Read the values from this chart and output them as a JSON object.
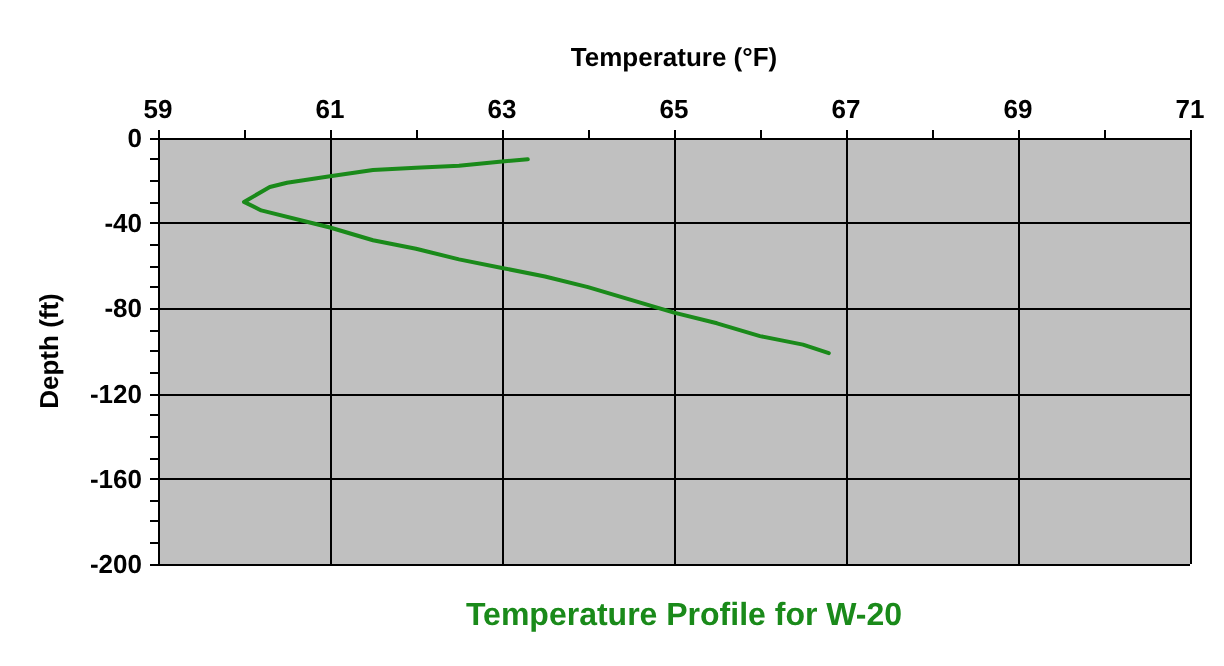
{
  "chart_data": {
    "type": "line",
    "title": "Temperature Profile for W-20",
    "xlabel": "Temperature (°F)",
    "ylabel": "Depth (ft)",
    "xlim": [
      59,
      71
    ],
    "ylim": [
      -200,
      0
    ],
    "xticks": [
      59,
      {
        "value": 60,
        "label": null
      },
      61,
      {
        "value": 62,
        "label": null
      },
      63,
      {
        "value": 64,
        "label": null
      },
      65,
      {
        "value": 66,
        "label": null
      },
      67,
      {
        "value": 68,
        "label": null
      },
      69,
      {
        "value": 70,
        "label": null
      },
      71
    ],
    "yticks": [
      -200,
      {
        "value": -190,
        "label": null
      },
      {
        "value": -180,
        "label": null
      },
      {
        "value": -170,
        "label": null
      },
      -160,
      {
        "value": -150,
        "label": null
      },
      {
        "value": -140,
        "label": null
      },
      {
        "value": -130,
        "label": null
      },
      -120,
      {
        "value": -110,
        "label": null
      },
      {
        "value": -100,
        "label": null
      },
      {
        "value": -90,
        "label": null
      },
      -80,
      {
        "value": -70,
        "label": null
      },
      {
        "value": -60,
        "label": null
      },
      {
        "value": -50,
        "label": null
      },
      -40,
      {
        "value": -30,
        "label": null
      },
      {
        "value": -20,
        "label": null
      },
      {
        "value": -10,
        "label": null
      },
      0
    ],
    "grid": true,
    "marker": "none",
    "line_style": "solid",
    "series": [
      {
        "color": "#1a8a1a",
        "x": [
          63.3,
          63,
          62.5,
          62,
          61.5,
          61,
          60.5,
          60.3,
          60,
          60.2,
          60.8,
          61,
          61.5,
          62,
          62.5,
          63,
          63.5,
          64,
          64.5,
          65,
          65.5,
          66,
          66.5,
          66.8
        ],
        "values": [
          -10,
          -11,
          -13,
          -14,
          -15,
          -18,
          -21,
          -23,
          -30,
          -34,
          -40,
          -42,
          -48,
          -52,
          -57,
          -61,
          -65,
          -70,
          -76,
          -82,
          -87,
          -93,
          -97,
          -101
        ]
      }
    ]
  }
}
